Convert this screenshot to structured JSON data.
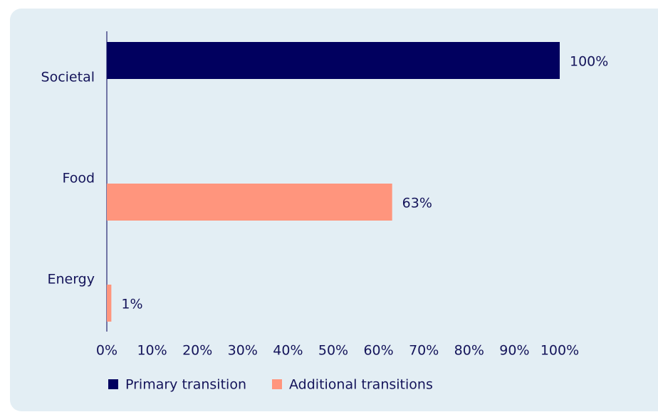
{
  "chart_data": {
    "type": "bar",
    "orientation": "horizontal",
    "categories": [
      "Societal",
      "Food",
      "Energy"
    ],
    "series": [
      {
        "name": "Primary transition",
        "color": "#01005f",
        "values": [
          100,
          null,
          null
        ],
        "value_labels": [
          "100%",
          null,
          null
        ]
      },
      {
        "name": "Additional transitions",
        "color": "#ff957d",
        "values": [
          null,
          63,
          1
        ],
        "value_labels": [
          null,
          "63%",
          "1%"
        ]
      }
    ],
    "xlim": [
      0,
      100
    ],
    "xticks": [
      {
        "value": 0,
        "label": "0%"
      },
      {
        "value": 10,
        "label": "10%"
      },
      {
        "value": 20,
        "label": "20%"
      },
      {
        "value": 30,
        "label": "30%"
      },
      {
        "value": 40,
        "label": "40%"
      },
      {
        "value": 50,
        "label": "50%"
      },
      {
        "value": 60,
        "label": "60%"
      },
      {
        "value": 70,
        "label": "70%"
      },
      {
        "value": 80,
        "label": "80%"
      },
      {
        "value": 90,
        "label": "90%"
      },
      {
        "value": 100,
        "label": "100%"
      }
    ],
    "legend": "bottom"
  }
}
